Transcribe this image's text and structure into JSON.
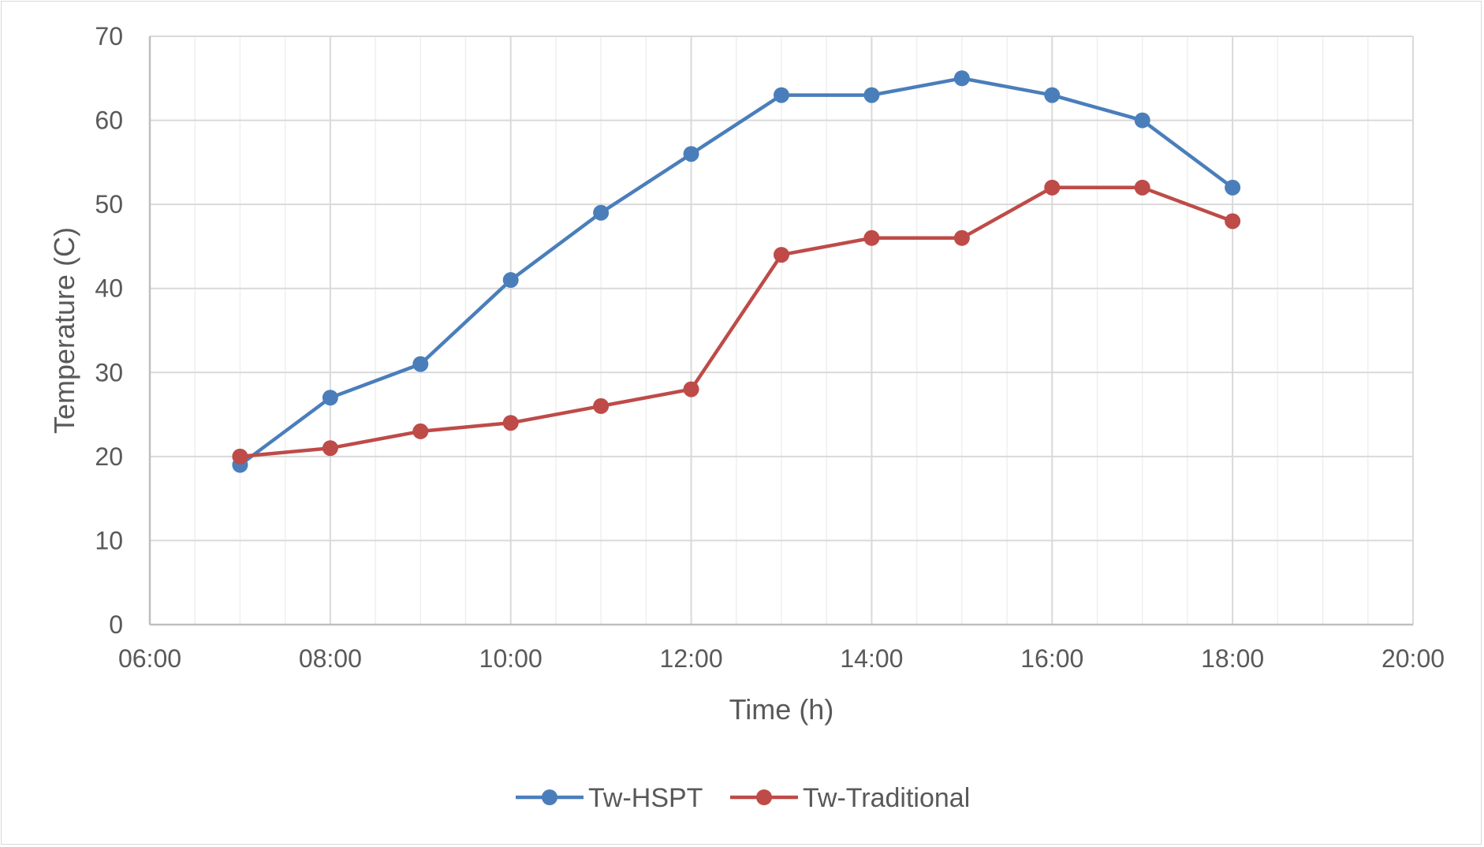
{
  "chart_data": {
    "type": "line",
    "title": "",
    "xlabel": "Time (h)",
    "ylabel": "Temperature (C)",
    "x_ticks": [
      "06:00",
      "08:00",
      "10:00",
      "12:00",
      "14:00",
      "16:00",
      "18:00",
      "20:00"
    ],
    "x_range": [
      "06:00",
      "20:00"
    ],
    "y_ticks": [
      0,
      10,
      20,
      30,
      40,
      50,
      60,
      70
    ],
    "ylim": [
      0,
      70
    ],
    "grid": true,
    "legend_position": "bottom",
    "x": [
      "07:00",
      "08:00",
      "09:00",
      "10:00",
      "11:00",
      "12:00",
      "13:00",
      "14:00",
      "15:00",
      "16:00",
      "17:00",
      "18:00"
    ],
    "series": [
      {
        "name": "Tw-HSPT",
        "color": "#4a7ebb",
        "values": [
          19,
          27,
          31,
          41,
          49,
          56,
          63,
          63,
          65,
          63,
          60,
          52
        ]
      },
      {
        "name": "Tw-Traditional",
        "color": "#be4b48",
        "values": [
          20,
          21,
          23,
          24,
          26,
          28,
          44,
          46,
          46,
          52,
          52,
          48
        ]
      }
    ]
  }
}
